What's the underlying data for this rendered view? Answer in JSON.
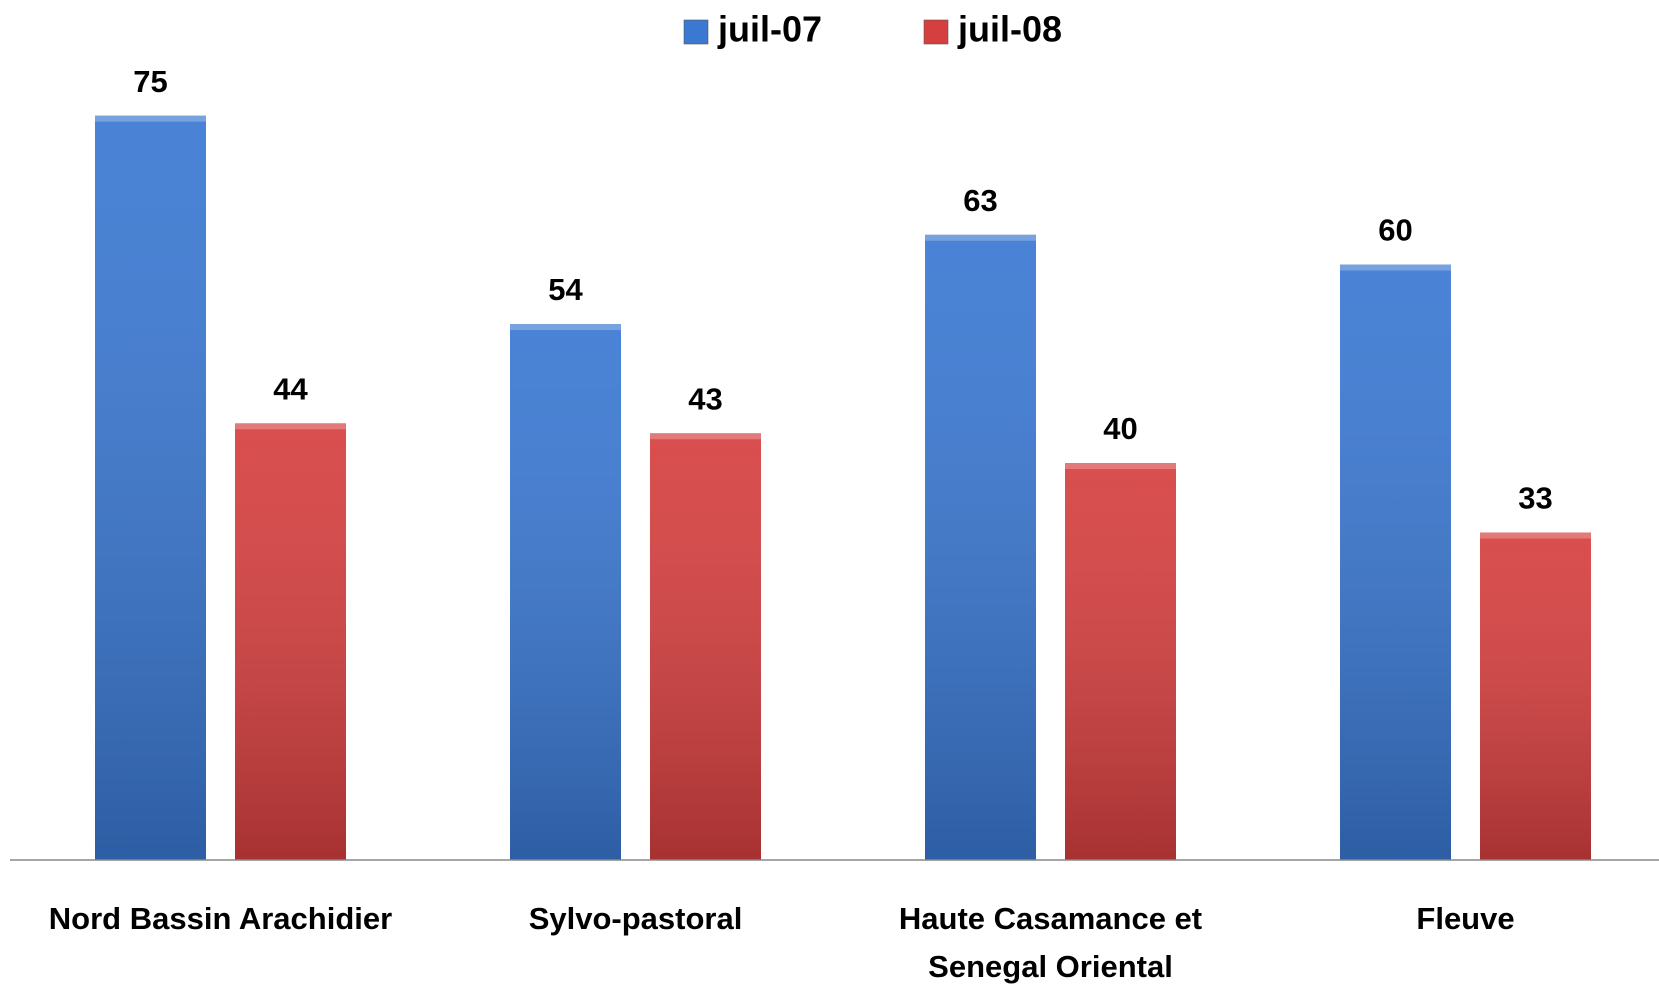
{
  "chart_data": {
    "type": "bar",
    "categories": [
      "Nord Bassin Arachidier",
      "Sylvo-pastoral",
      "Haute Casamance et Senegal Oriental",
      "Fleuve"
    ],
    "series": [
      {
        "name": "juil-07",
        "color": "#3a78d2",
        "values": [
          75,
          54,
          63,
          60
        ]
      },
      {
        "name": "juil-08",
        "color": "#d63f3f",
        "values": [
          44,
          43,
          40,
          33
        ]
      }
    ],
    "ylim": [
      0,
      80
    ],
    "legend": "top",
    "grid": false
  }
}
